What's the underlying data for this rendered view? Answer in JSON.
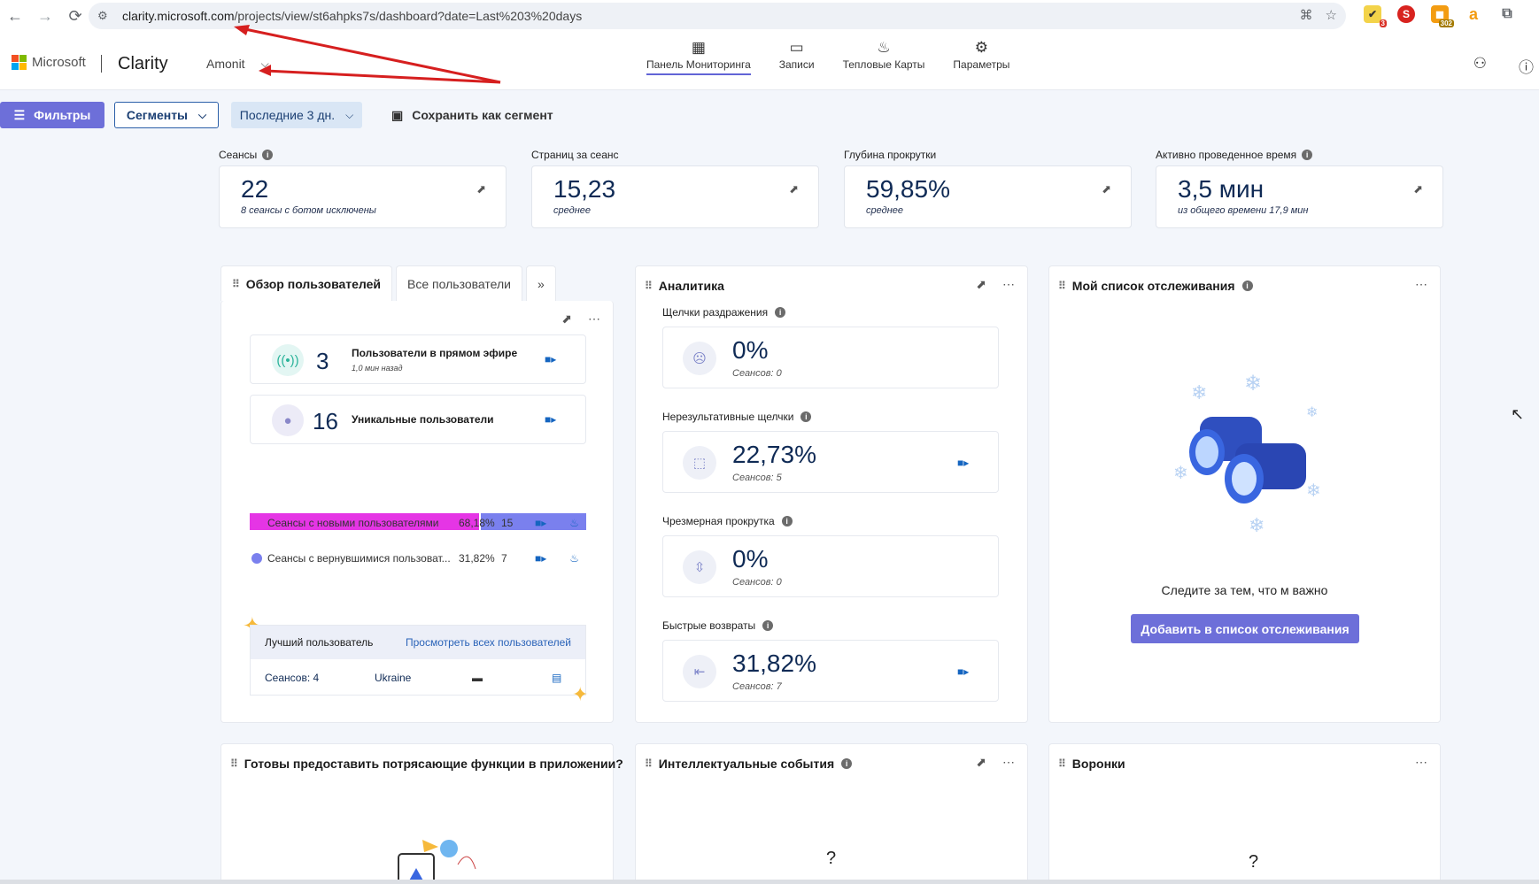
{
  "browser": {
    "url_host": "clarity.microsoft.com",
    "url_path": "/projects/view/st6ahpks7s/dashboard?date=Last%203%20days",
    "ext_badge_1": "3",
    "ext_badge_2": "302"
  },
  "header": {
    "microsoft": "Microsoft",
    "app_name": "Clarity",
    "project": "Amonit",
    "nav": [
      {
        "label": "Панель Мониторинга",
        "icon": "dashboard-icon"
      },
      {
        "label": "Записи",
        "icon": "video-icon"
      },
      {
        "label": "Тепловые Карты",
        "icon": "flame-icon"
      },
      {
        "label": "Параметры",
        "icon": "gear-icon"
      }
    ]
  },
  "toolbar": {
    "filters": "Фильтры",
    "segments": "Сегменты",
    "date_range": "Последние 3 дн.",
    "save_segment": "Сохранить как сегмент"
  },
  "kpis": [
    {
      "label": "Сеансы",
      "value": "22",
      "sub": "8 сеансы с ботом исключены",
      "info": true
    },
    {
      "label": "Страниц за сеанс",
      "value": "15,23",
      "sub": "среднее",
      "info": false
    },
    {
      "label": "Глубина прокрутки",
      "value": "59,85%",
      "sub": "среднее",
      "info": false
    },
    {
      "label": "Активно проведенное время",
      "value": "3,5 мин",
      "sub": "из общего времени 17,9 мин",
      "info": true
    }
  ],
  "users_widget": {
    "tab_overview": "Обзор пользователей",
    "tab_all": "Все пользователи",
    "live_count": "3",
    "live_label": "Пользователи в прямом эфире",
    "live_sub": "1,0 мин назад",
    "unique_count": "16",
    "unique_label": "Уникальные пользователи",
    "new_share": 0.6818,
    "legend": [
      {
        "label": "Сеансы с новыми пользователями",
        "pct": "68,18%",
        "count": "15",
        "color": "#e535e5"
      },
      {
        "label": "Сеансы с вернувшимися пользоват...",
        "pct": "31,82%",
        "count": "7",
        "color": "#7a80ee"
      }
    ],
    "best_user_title": "Лучший пользователь",
    "view_all": "Просмотреть всех пользователей",
    "best_sessions": "Сеансов: 4",
    "best_country": "Ukraine"
  },
  "analytics": {
    "title": "Аналитика",
    "metrics": [
      {
        "label": "Щелчки раздражения",
        "value": "0%",
        "sub": "Сеансов: 0",
        "cam": false
      },
      {
        "label": "Нерезультативные щелчки",
        "value": "22,73%",
        "sub": "Сеансов: 5",
        "cam": true
      },
      {
        "label": "Чрезмерная прокрутка",
        "value": "0%",
        "sub": "Сеансов: 0",
        "cam": false
      },
      {
        "label": "Быстрые возвраты",
        "value": "31,82%",
        "sub": "Сеансов: 7",
        "cam": true
      }
    ]
  },
  "watchlist": {
    "title": "Мой список отслеживания",
    "empty_text": "Следите за тем, что м важно",
    "add_button": "Добавить в список отслеживания"
  },
  "bottom_widgets": {
    "app_features": "Готовы предоставить потрясающие функции в приложении?",
    "smart_events": "Интеллектуальные события",
    "funnels": "Воронки",
    "placeholder": "?"
  }
}
